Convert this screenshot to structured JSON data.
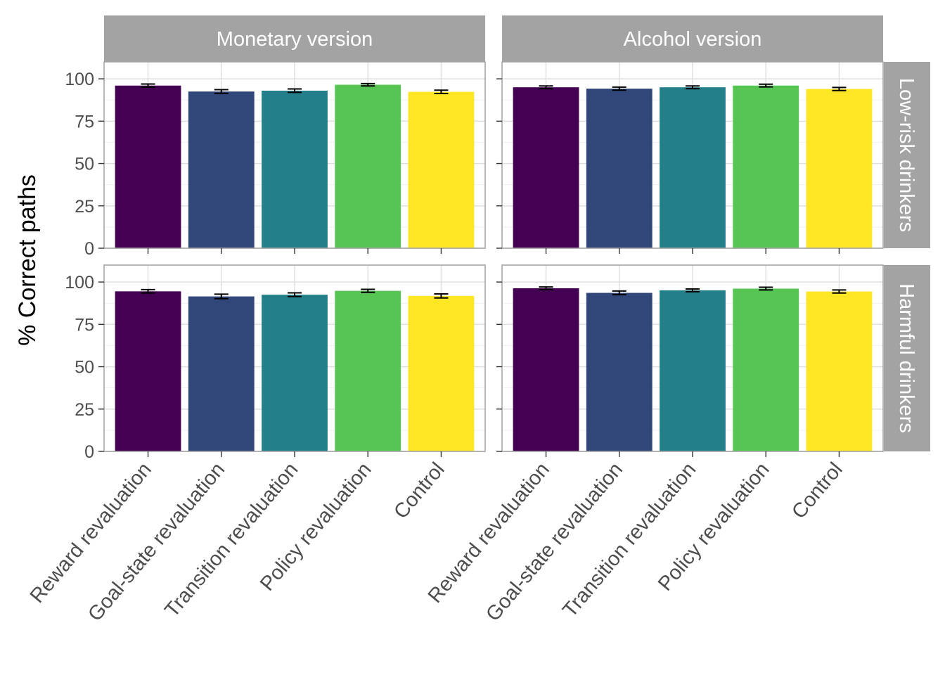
{
  "chart_data": {
    "type": "bar",
    "ylabel": "% Correct paths",
    "ylim": [
      0,
      110
    ],
    "yticks": [
      0,
      25,
      50,
      75,
      100
    ],
    "grid": true,
    "categories": [
      "Reward revaluation",
      "Goal-state revaluation",
      "Transition revaluation",
      "Policy revaluation",
      "Control"
    ],
    "colors": [
      "#440154",
      "#31477a",
      "#23808a",
      "#56c553",
      "#fde725"
    ],
    "columns": [
      "Monetary version",
      "Alcohol version"
    ],
    "rows": [
      "Low-risk drinkers",
      "Harmful drinkers"
    ],
    "panels": [
      {
        "column": "Monetary version",
        "row": "Low-risk drinkers",
        "values": [
          96,
          92.5,
          93,
          96.5,
          92.3
        ],
        "errors": [
          0.9,
          1.1,
          1.0,
          0.7,
          1.0
        ]
      },
      {
        "column": "Alcohol version",
        "row": "Low-risk drinkers",
        "values": [
          95,
          94.2,
          95,
          96,
          94
        ],
        "errors": [
          0.8,
          0.9,
          0.8,
          0.8,
          0.9
        ]
      },
      {
        "column": "Monetary version",
        "row": "Harmful drinkers",
        "values": [
          94.5,
          91.5,
          92.5,
          94.8,
          91.8
        ],
        "errors": [
          1.0,
          1.3,
          1.1,
          0.9,
          1.2
        ]
      },
      {
        "column": "Alcohol version",
        "row": "Harmful drinkers",
        "values": [
          96.3,
          93.6,
          95.1,
          96.1,
          94.4
        ],
        "errors": [
          0.8,
          1.1,
          0.8,
          0.8,
          0.9
        ]
      }
    ]
  }
}
